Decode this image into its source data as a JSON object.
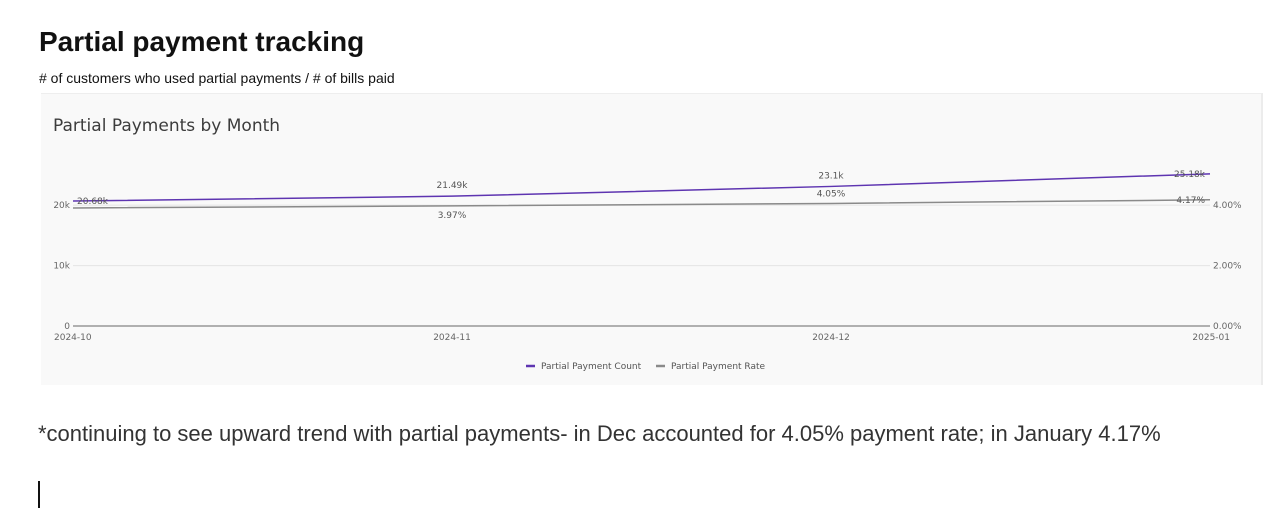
{
  "page": {
    "title": "Partial payment tracking",
    "subtitle": "# of customers who used partial payments / # of bills paid",
    "note": "*continuing to see upward trend with partial payments- in Dec accounted for 4.05% payment rate; in January 4.17%"
  },
  "chart_data": {
    "type": "line",
    "title": "Partial Payments by Month",
    "x": [
      "2024-10",
      "2024-11",
      "2024-12",
      "2025-01"
    ],
    "series": [
      {
        "name": "Partial Payment Count",
        "axis": "left",
        "color": "#5e35b1",
        "values": [
          20680,
          21490,
          23100,
          25180
        ],
        "labels": [
          "20.68k",
          "21.49k",
          "23.1k",
          "25.18k"
        ]
      },
      {
        "name": "Partial Payment Rate",
        "axis": "right",
        "color": "#8a8a8a",
        "values": [
          3.9,
          3.97,
          4.05,
          4.17
        ],
        "labels": [
          "",
          "3.97%",
          "4.05%",
          "4.17%"
        ]
      }
    ],
    "y_left": {
      "ticks": [
        "0",
        "10k",
        "20k"
      ],
      "tick_values": [
        0,
        10000,
        20000
      ],
      "range": [
        0,
        28800
      ]
    },
    "y_right": {
      "ticks": [
        "0.00%",
        "2.00%",
        "4.00%"
      ],
      "tick_values": [
        0,
        2,
        4
      ],
      "range": [
        0,
        5.75
      ]
    },
    "grid": true,
    "legend": "bottom"
  }
}
